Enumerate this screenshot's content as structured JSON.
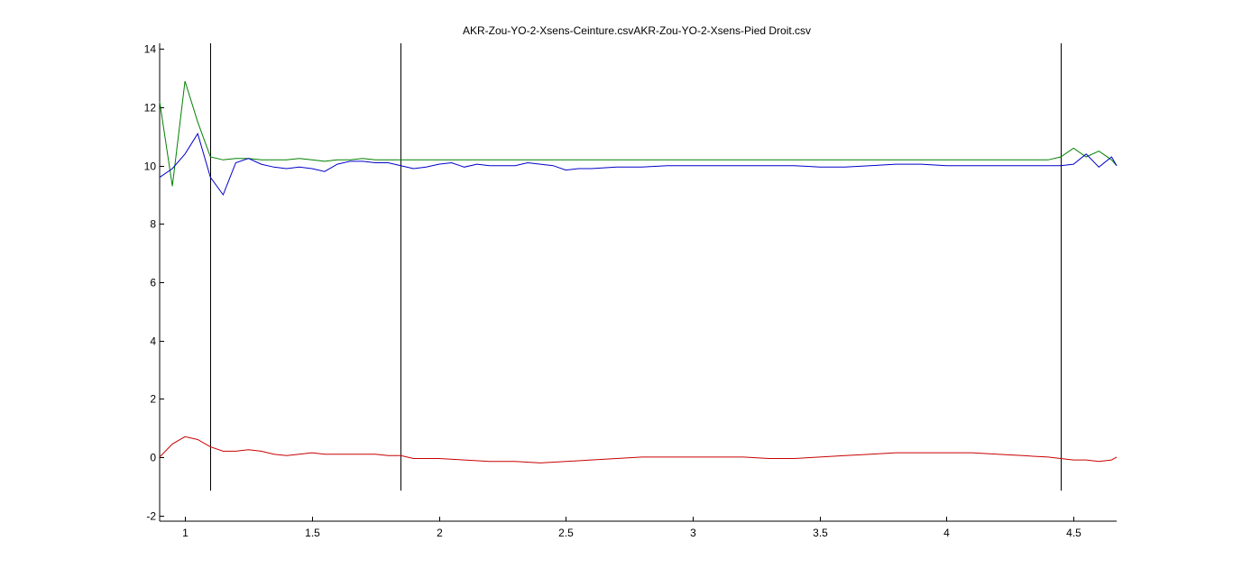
{
  "chart_data": {
    "type": "line",
    "title": "AKR-Zou-YO-2-Xsens-Ceinture.csvAKR-Zou-YO-2-Xsens-Pied Droit.csv",
    "xlabel": "",
    "ylabel": "",
    "xlim": [
      0.9,
      4.67
    ],
    "ylim": [
      -2.2,
      14.2
    ],
    "xticks": [
      1,
      1.5,
      2,
      2.5,
      3,
      3.5,
      4,
      4.5
    ],
    "xtick_labels": [
      "1",
      "1.5",
      "2",
      "2.5",
      "3",
      "3.5",
      "4",
      "4.5"
    ],
    "yticks": [
      -2,
      0,
      2,
      4,
      6,
      8,
      10,
      12,
      14
    ],
    "ytick_labels": [
      "-2",
      "0",
      "2",
      "4",
      "6",
      "8",
      "10",
      "12",
      "14"
    ],
    "grid": false,
    "legend": "none",
    "event_lines": {
      "x": [
        1.1,
        1.85,
        4.45
      ],
      "y_range": [
        -1.15,
        14.2
      ],
      "color": "#000000"
    },
    "series": [
      {
        "color": "#008000",
        "x": [
          0.9,
          0.95,
          1.0,
          1.05,
          1.1,
          1.15,
          1.2,
          1.25,
          1.3,
          1.35,
          1.4,
          1.45,
          1.5,
          1.55,
          1.6,
          1.65,
          1.7,
          1.75,
          1.8,
          1.85,
          1.9,
          2.0,
          2.1,
          2.2,
          2.3,
          2.4,
          2.5,
          2.6,
          2.7,
          2.8,
          2.9,
          3.0,
          3.1,
          3.2,
          3.3,
          3.4,
          3.5,
          3.6,
          3.7,
          3.8,
          3.9,
          4.0,
          4.1,
          4.2,
          4.3,
          4.4,
          4.45,
          4.5,
          4.55,
          4.6,
          4.65,
          4.67
        ],
        "values": [
          12.2,
          9.3,
          12.9,
          11.5,
          10.3,
          10.2,
          10.25,
          10.25,
          10.2,
          10.2,
          10.2,
          10.25,
          10.2,
          10.15,
          10.2,
          10.2,
          10.25,
          10.2,
          10.2,
          10.2,
          10.2,
          10.2,
          10.2,
          10.2,
          10.2,
          10.2,
          10.2,
          10.2,
          10.2,
          10.2,
          10.2,
          10.2,
          10.2,
          10.2,
          10.2,
          10.2,
          10.2,
          10.2,
          10.2,
          10.2,
          10.2,
          10.2,
          10.2,
          10.2,
          10.2,
          10.2,
          10.3,
          10.6,
          10.3,
          10.5,
          10.2,
          10.0
        ]
      },
      {
        "color": "#0000c8",
        "x": [
          0.9,
          0.95,
          1.0,
          1.05,
          1.1,
          1.15,
          1.2,
          1.25,
          1.3,
          1.35,
          1.4,
          1.45,
          1.5,
          1.55,
          1.6,
          1.65,
          1.7,
          1.75,
          1.8,
          1.85,
          1.9,
          1.95,
          2.0,
          2.05,
          2.1,
          2.15,
          2.2,
          2.25,
          2.3,
          2.35,
          2.4,
          2.45,
          2.5,
          2.55,
          2.6,
          2.7,
          2.8,
          2.9,
          3.0,
          3.1,
          3.2,
          3.3,
          3.4,
          3.5,
          3.6,
          3.7,
          3.8,
          3.9,
          4.0,
          4.1,
          4.2,
          4.3,
          4.4,
          4.45,
          4.5,
          4.55,
          4.6,
          4.65,
          4.67
        ],
        "values": [
          9.6,
          9.9,
          10.4,
          11.1,
          9.6,
          9.0,
          10.1,
          10.25,
          10.05,
          9.95,
          9.9,
          9.95,
          9.9,
          9.8,
          10.05,
          10.15,
          10.15,
          10.1,
          10.1,
          10.0,
          9.9,
          9.95,
          10.05,
          10.1,
          9.95,
          10.05,
          10.0,
          10.0,
          10.0,
          10.1,
          10.05,
          10.0,
          9.85,
          9.9,
          9.9,
          9.95,
          9.95,
          10.0,
          10.0,
          10.0,
          10.0,
          10.0,
          10.0,
          9.95,
          9.95,
          10.0,
          10.05,
          10.05,
          10.0,
          10.0,
          10.0,
          10.0,
          10.0,
          10.0,
          10.05,
          10.4,
          9.95,
          10.3,
          10.0
        ]
      },
      {
        "color": "#c80000",
        "x": [
          0.9,
          0.95,
          1.0,
          1.05,
          1.1,
          1.15,
          1.2,
          1.25,
          1.3,
          1.35,
          1.4,
          1.45,
          1.5,
          1.55,
          1.6,
          1.65,
          1.7,
          1.75,
          1.8,
          1.85,
          1.9,
          2.0,
          2.1,
          2.2,
          2.3,
          2.4,
          2.5,
          2.6,
          2.7,
          2.8,
          2.9,
          3.0,
          3.1,
          3.2,
          3.3,
          3.4,
          3.5,
          3.6,
          3.7,
          3.8,
          3.9,
          4.0,
          4.1,
          4.2,
          4.3,
          4.4,
          4.45,
          4.5,
          4.55,
          4.6,
          4.65,
          4.67
        ],
        "values": [
          0.0,
          0.45,
          0.7,
          0.6,
          0.35,
          0.2,
          0.2,
          0.25,
          0.2,
          0.1,
          0.05,
          0.1,
          0.15,
          0.1,
          0.1,
          0.1,
          0.1,
          0.1,
          0.05,
          0.05,
          -0.05,
          -0.05,
          -0.1,
          -0.15,
          -0.15,
          -0.2,
          -0.15,
          -0.1,
          -0.05,
          0.0,
          0.0,
          0.0,
          0.0,
          0.0,
          -0.05,
          -0.05,
          0.0,
          0.05,
          0.1,
          0.15,
          0.15,
          0.15,
          0.15,
          0.1,
          0.05,
          0.0,
          -0.05,
          -0.1,
          -0.1,
          -0.15,
          -0.1,
          0.0
        ]
      }
    ]
  }
}
